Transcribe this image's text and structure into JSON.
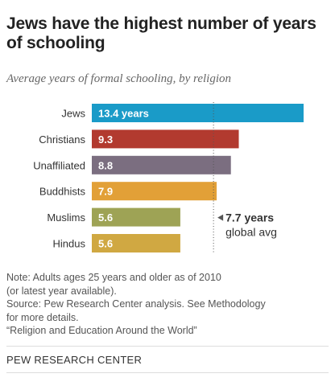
{
  "title": "Jews have the highest number of years of schooling",
  "subtitle": "Average years of formal schooling, by religion",
  "chart_data": {
    "type": "bar",
    "orientation": "horizontal",
    "categories": [
      "Jews",
      "Christians",
      "Unaffiliated",
      "Buddhists",
      "Muslims",
      "Hindus"
    ],
    "values": [
      13.4,
      9.3,
      8.8,
      7.9,
      5.6,
      5.6
    ],
    "value_labels": [
      "13.4 years",
      "9.3",
      "8.8",
      "7.9",
      "5.6",
      "5.6"
    ],
    "colors": [
      "#1a9bc8",
      "#b23a2f",
      "#7b6e80",
      "#e2a037",
      "#9ea355",
      "#d0a842"
    ],
    "xlim": [
      0,
      13.4
    ],
    "grid": false,
    "reference_line": {
      "value": 7.7,
      "label_line1": "7.7 years",
      "label_line2": "global avg",
      "style": "dotted"
    }
  },
  "notes": {
    "note": "Note: Adults ages 25 years and older as of 2010\n(or latest year available).",
    "source": "Source: Pew Research Center analysis. See Methodology\nfor more details.",
    "report": "“Religion and Education Around the World”"
  },
  "brand": "PEW RESEARCH CENTER"
}
